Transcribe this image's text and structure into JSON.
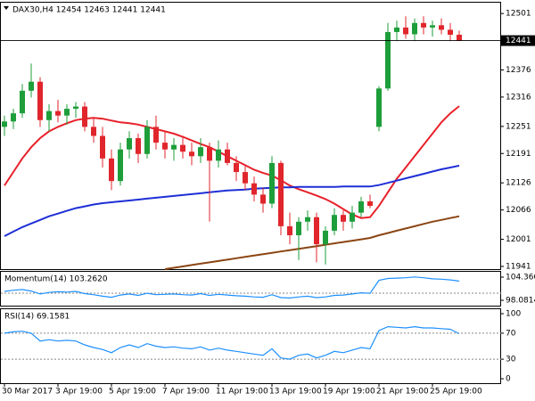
{
  "chart_data": [
    {
      "type": "candlestick",
      "title": "DAX30,H4  12454 12463 12441 12441",
      "categories": [
        "30 Mar 2017",
        null,
        null,
        null,
        null,
        null,
        "3 Apr 19:00",
        null,
        null,
        null,
        null,
        null,
        "5 Apr 19:00",
        null,
        null,
        null,
        null,
        null,
        "7 Apr 19:00",
        null,
        null,
        null,
        null,
        null,
        "11 Apr 19:00",
        null,
        null,
        null,
        null,
        null,
        "13 Apr 19:00",
        null,
        null,
        null,
        null,
        null,
        "19 Apr 19:00",
        null,
        null,
        null,
        null,
        null,
        "21 Apr 19:00",
        null,
        null,
        null,
        null,
        null,
        "25 Apr 19:00",
        null,
        null,
        null
      ],
      "open": [
        12250,
        12262,
        12280,
        12330,
        12350,
        12265,
        12285,
        12275,
        12290,
        12295,
        12250,
        12230,
        12180,
        12130,
        12200,
        12225,
        12190,
        12250,
        12215,
        12200,
        12210,
        12195,
        12185,
        12205,
        12175,
        12200,
        12170,
        12150,
        12125,
        12100,
        12080,
        12170,
        12030,
        12010,
        12040,
        12050,
        11990,
        12020,
        12055,
        12040,
        12060,
        12085,
        12250,
        12335,
        12460,
        12470,
        12455,
        12480,
        12470,
        12475,
        12465,
        12454
      ],
      "high": [
        12275,
        12290,
        12345,
        12390,
        12360,
        12300,
        12310,
        12300,
        12305,
        12305,
        12270,
        12250,
        12200,
        12215,
        12240,
        12235,
        12265,
        12275,
        12240,
        12225,
        12230,
        12215,
        12225,
        12215,
        12220,
        12215,
        12185,
        12165,
        12140,
        12115,
        12185,
        12175,
        12060,
        12050,
        12065,
        12060,
        12030,
        12070,
        12065,
        12075,
        12095,
        12100,
        12340,
        12480,
        12485,
        12495,
        12490,
        12495,
        12485,
        12490,
        12480,
        12463
      ],
      "low": [
        12230,
        12245,
        12270,
        12315,
        12250,
        12240,
        12260,
        12255,
        12270,
        12240,
        12215,
        12160,
        12110,
        12120,
        12180,
        12170,
        12180,
        12200,
        12180,
        12175,
        12180,
        12165,
        12170,
        12040,
        12160,
        12165,
        12130,
        12110,
        12085,
        12060,
        12070,
        12010,
        11990,
        11955,
        12020,
        11950,
        11945,
        12010,
        12020,
        12025,
        12050,
        12070,
        12240,
        12330,
        12440,
        12445,
        12440,
        12455,
        12450,
        12455,
        12440,
        12441
      ],
      "close": [
        12262,
        12280,
        12330,
        12350,
        12265,
        12285,
        12275,
        12290,
        12295,
        12250,
        12230,
        12180,
        12130,
        12200,
        12225,
        12190,
        12250,
        12215,
        12200,
        12210,
        12195,
        12185,
        12205,
        12175,
        12200,
        12170,
        12150,
        12125,
        12100,
        12080,
        12170,
        12030,
        12010,
        12040,
        12050,
        11990,
        12020,
        12055,
        12040,
        12060,
        12085,
        12075,
        12335,
        12460,
        12470,
        12455,
        12480,
        12470,
        12475,
        12465,
        12454,
        12441
      ],
      "up_color": "#1e9e3a",
      "down_color": "#e0262c",
      "series": [
        {
          "color": "#e8212a",
          "values": [
            12120,
            12150,
            12180,
            12205,
            12225,
            12240,
            12250,
            12258,
            12265,
            12268,
            12270,
            12268,
            12264,
            12260,
            12258,
            12255,
            12250,
            12245,
            12240,
            12235,
            12228,
            12220,
            12212,
            12205,
            12195,
            12185,
            12175,
            12165,
            12155,
            12148,
            12142,
            12132,
            12120,
            12112,
            12105,
            12098,
            12090,
            12080,
            12068,
            12056,
            12048,
            12050,
            12075,
            12105,
            12135,
            12160,
            12185,
            12210,
            12235,
            12260,
            12280,
            12296
          ]
        },
        {
          "color": "#1e2fd6",
          "values": [
            12008,
            12018,
            12028,
            12036,
            12044,
            12052,
            12058,
            12064,
            12070,
            12074,
            12078,
            12081,
            12083,
            12085,
            12087,
            12089,
            12091,
            12093,
            12095,
            12097,
            12099,
            12101,
            12103,
            12105,
            12107,
            12109,
            12110,
            12111,
            12113,
            12114,
            12115,
            12116,
            12116,
            12117,
            12117,
            12117,
            12117,
            12117,
            12118,
            12118,
            12118,
            12118,
            12121,
            12126,
            12131,
            12136,
            12141,
            12146,
            12151,
            12156,
            12160,
            12164
          ]
        },
        {
          "color": "#8b4513",
          "values": [
            null,
            null,
            null,
            null,
            null,
            null,
            null,
            null,
            null,
            null,
            null,
            null,
            null,
            null,
            null,
            null,
            null,
            null,
            11935,
            11938,
            11941,
            11944,
            11947,
            11950,
            11953,
            11956,
            11959,
            11962,
            11965,
            11968,
            11971,
            11974,
            11977,
            11980,
            11983,
            11986,
            11989,
            11992,
            11995,
            11998,
            12001,
            12004,
            12010,
            12015,
            12020,
            12025,
            12030,
            12035,
            12040,
            12044,
            12048,
            12052
          ]
        }
      ],
      "ylim": [
        11935,
        12525
      ],
      "yticks": [
        12501,
        12376,
        12316,
        12251,
        12191,
        12126,
        12066,
        12001,
        11941
      ]
    },
    {
      "type": "line",
      "title": "Momentum(14) 103.2620",
      "color": "#1e90ff",
      "values": [
        100.5,
        100.8,
        101.0,
        100.6,
        99.8,
        100.2,
        100.4,
        100.3,
        100.5,
        99.9,
        99.6,
        99.2,
        98.9,
        99.5,
        99.8,
        99.4,
        100.0,
        99.6,
        99.7,
        99.8,
        99.6,
        99.5,
        99.9,
        99.4,
        99.7,
        99.5,
        99.3,
        99.2,
        99.0,
        98.9,
        99.6,
        98.8,
        98.7,
        99.0,
        99.2,
        98.8,
        99.0,
        99.4,
        99.5,
        99.8,
        100.1,
        100.0,
        103.5,
        104.0,
        104.1,
        104.2,
        104.4,
        104.2,
        103.9,
        103.8,
        103.6,
        103.262
      ],
      "ylim": [
        96.63,
        105.81
      ],
      "yticks": [
        104.3609,
        98.0814
      ],
      "levels": [
        100
      ]
    },
    {
      "type": "line",
      "title": "RSI(14) 69.1581",
      "color": "#1e90ff",
      "values": [
        70,
        72,
        73,
        70,
        58,
        60,
        58,
        59,
        58,
        52,
        48,
        45,
        40,
        48,
        52,
        48,
        54,
        50,
        48,
        49,
        47,
        46,
        49,
        44,
        47,
        44,
        42,
        40,
        38,
        36,
        46,
        32,
        30,
        36,
        38,
        32,
        36,
        42,
        40,
        44,
        48,
        46,
        74,
        80,
        79,
        78,
        80,
        78,
        78,
        77,
        76,
        69.1581
      ],
      "ylim": [
        -6.8,
        106.8
      ],
      "yticks": [
        100,
        70,
        30,
        0
      ],
      "levels": [
        70,
        30
      ]
    }
  ]
}
